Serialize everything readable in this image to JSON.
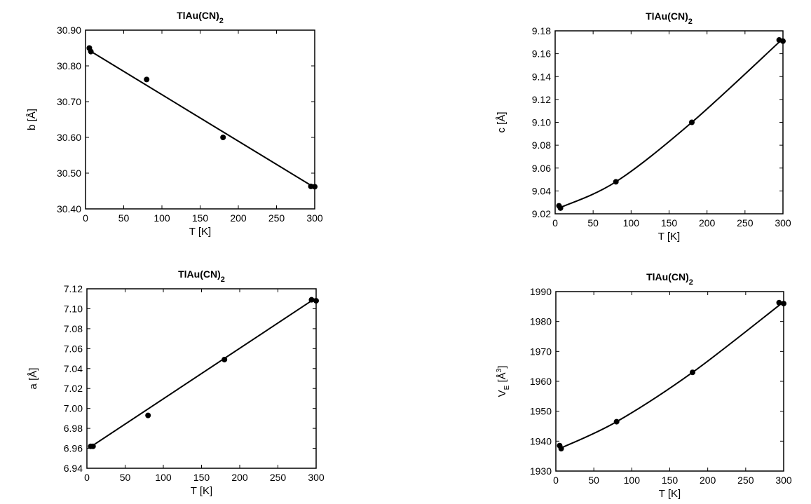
{
  "chart_data": [
    {
      "type": "scatter",
      "title": "TlAu(CN)",
      "title_subscript": "2",
      "xlabel": "T [K]",
      "ylabel": "b [Å]",
      "xlim": [
        0,
        300
      ],
      "ylim": [
        30.4,
        30.9
      ],
      "xticks": [
        "0",
        "50",
        "100",
        "150",
        "200",
        "250",
        "300"
      ],
      "yticks": [
        "30.40",
        "30.50",
        "30.60",
        "30.70",
        "30.80",
        "30.90"
      ],
      "points": [
        [
          5,
          30.85
        ],
        [
          7,
          30.84
        ],
        [
          80,
          30.762
        ],
        [
          180,
          30.6
        ],
        [
          295,
          30.463
        ],
        [
          300,
          30.462
        ]
      ],
      "fit_line": [
        [
          2,
          30.847
        ],
        [
          298,
          30.462
        ]
      ],
      "fit_type": "linear",
      "grid": false
    },
    {
      "type": "scatter",
      "title": "TlAu(CN)",
      "title_subscript": "2",
      "xlabel": "T [K]",
      "ylabel": "c [Å]",
      "xlim": [
        0,
        300
      ],
      "ylim": [
        9.02,
        9.18
      ],
      "xticks": [
        "0",
        "50",
        "100",
        "150",
        "200",
        "250",
        "300"
      ],
      "yticks": [
        "9.02",
        "9.04",
        "9.06",
        "9.08",
        "9.10",
        "9.12",
        "9.14",
        "9.16",
        "9.18"
      ],
      "points": [
        [
          5,
          9.027
        ],
        [
          7,
          9.025
        ],
        [
          80,
          9.048
        ],
        [
          180,
          9.1
        ],
        [
          295,
          9.172
        ],
        [
          300,
          9.171
        ]
      ],
      "fit_line": [
        [
          5,
          9.025
        ],
        [
          80,
          9.048
        ],
        [
          180,
          9.1
        ],
        [
          298,
          9.172
        ]
      ],
      "fit_type": "quadratic",
      "grid": false
    },
    {
      "type": "scatter",
      "title": "TlAu(CN)",
      "title_subscript": "2",
      "xlabel": "T [K]",
      "ylabel": "a [Å]",
      "xlim": [
        0,
        300
      ],
      "ylim": [
        6.94,
        7.12
      ],
      "xticks": [
        "0",
        "50",
        "100",
        "150",
        "200",
        "250",
        "300"
      ],
      "yticks": [
        "6.94",
        "6.96",
        "6.98",
        "7.00",
        "7.02",
        "7.04",
        "7.06",
        "7.08",
        "7.10",
        "7.12"
      ],
      "points": [
        [
          5,
          6.962
        ],
        [
          8,
          6.962
        ],
        [
          80,
          6.993
        ],
        [
          180,
          7.049
        ],
        [
          294,
          7.109
        ],
        [
          300,
          7.108
        ]
      ],
      "fit_line": [
        [
          2,
          6.96
        ],
        [
          298,
          7.11
        ]
      ],
      "fit_type": "linear",
      "grid": false
    },
    {
      "type": "scatter",
      "title": "TlAu(CN)",
      "title_subscript": "2",
      "xlabel": "T [K]",
      "ylabel": "V",
      "ylabel_subscript": "E",
      "ylabel_suffix": " [Å",
      "ylabel_superscript": "3",
      "ylabel_end": "]",
      "xlim": [
        0,
        300
      ],
      "ylim": [
        1930,
        1990
      ],
      "xticks": [
        "0",
        "50",
        "100",
        "150",
        "200",
        "250",
        "300"
      ],
      "yticks": [
        "1930",
        "1940",
        "1950",
        "1960",
        "1970",
        "1980",
        "1990"
      ],
      "points": [
        [
          5,
          1938.5
        ],
        [
          7,
          1937.5
        ],
        [
          80,
          1946.5
        ],
        [
          180,
          1963
        ],
        [
          294,
          1986.3
        ],
        [
          300,
          1986
        ]
      ],
      "fit_line": [
        [
          5,
          1937.5
        ],
        [
          80,
          1946.5
        ],
        [
          180,
          1963
        ],
        [
          297,
          1986
        ]
      ],
      "fit_type": "quadratic",
      "grid": false
    }
  ]
}
